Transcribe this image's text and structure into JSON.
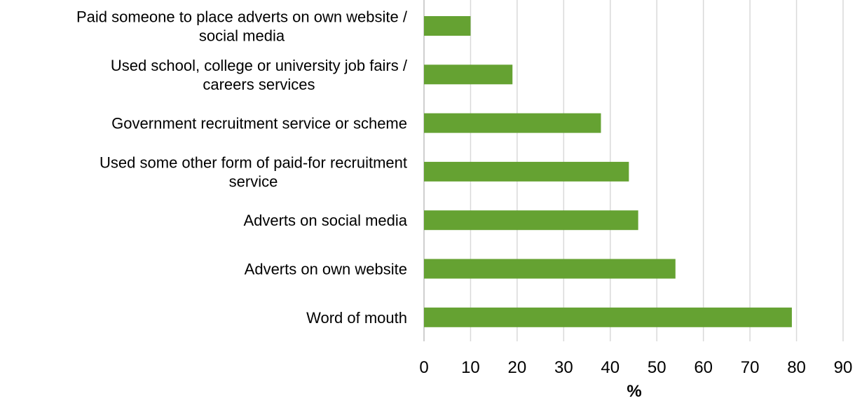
{
  "chart_data": {
    "type": "bar",
    "orientation": "horizontal",
    "categories": [
      [
        "Paid someone to place adverts on own website /",
        "social media"
      ],
      [
        "Used school, college or university job fairs /",
        "careers services"
      ],
      [
        "Government recruitment service or scheme"
      ],
      [
        "Used some other form of paid-for recruitment",
        "service"
      ],
      [
        "Adverts on social media"
      ],
      [
        "Adverts on own website"
      ],
      [
        "Word of mouth"
      ]
    ],
    "values": [
      10,
      19,
      38,
      44,
      46,
      54,
      79
    ],
    "xlabel": "%",
    "xlim": [
      0,
      90
    ],
    "xticks": [
      "0",
      "10",
      "20",
      "30",
      "40",
      "50",
      "60",
      "70",
      "80",
      "90"
    ],
    "grid": true,
    "bar_color": "#65a232",
    "grid_color": "#d9d9d9"
  }
}
